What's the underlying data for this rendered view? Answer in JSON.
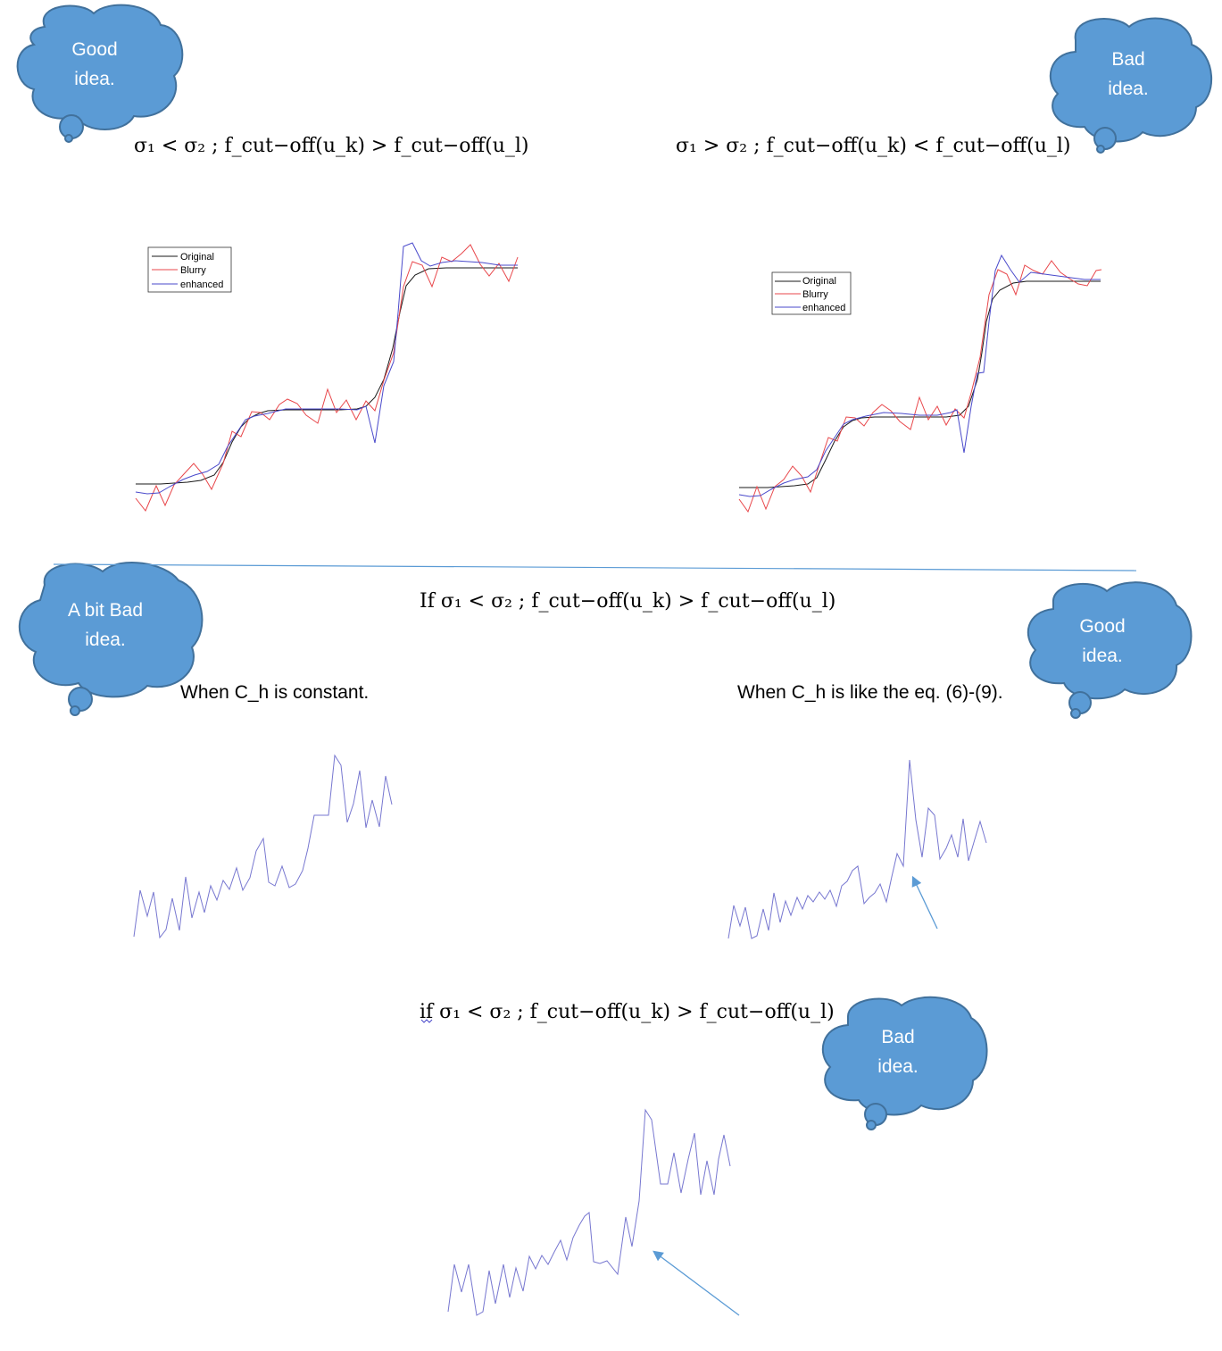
{
  "clouds": {
    "c1": [
      "Good",
      "idea."
    ],
    "c2": [
      "Bad",
      "idea."
    ],
    "c3": [
      "A bit Bad",
      "idea."
    ],
    "c4": [
      "Good",
      "idea."
    ],
    "c5": [
      "Bad",
      "idea."
    ]
  },
  "headings": {
    "top_left": "σ₁ < σ₂ ; f_cut−off(u_k) > f_cut−off(u_l)",
    "top_right": "σ₁ > σ₂ ; f_cut−off(u_k) < f_cut−off(u_l)",
    "middle": "If σ₁ < σ₂ ; f_cut−off(u_k) > f_cut−off(u_l)",
    "bottom": "if σ₁ < σ₂ ; f_cut−off(u_k) > f_cut−off(u_l)"
  },
  "captions": {
    "left": "When C_h is constant.",
    "right": "When C_h is like the eq. (6)-(9)."
  },
  "legend": {
    "original": "Original",
    "blurry": "Blurry",
    "enhanced": "enhanced"
  },
  "colors": {
    "cloud_fill": "#5b9bd5",
    "cloud_stroke": "#41719c",
    "original": "#1a1a1a",
    "blurry": "#e8474b",
    "enhanced": "#4a4acb",
    "enhanced_light": "#7777d0",
    "arrow": "#5b9bd5",
    "divider": "#5b9bd5"
  }
}
